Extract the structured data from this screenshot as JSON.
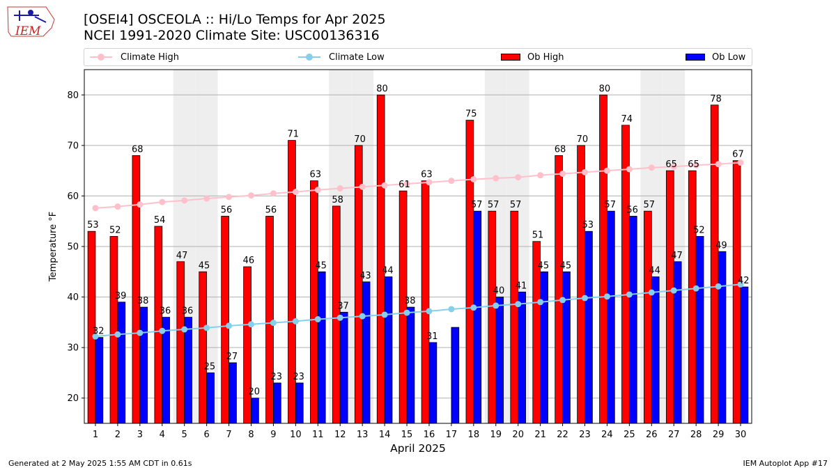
{
  "header": {
    "logo_text": "IEM",
    "title_line1": "[OSEI4] OSCEOLA :: Hi/Lo Temps for Apr 2025",
    "title_line2": "NCEI 1991-2020 Climate Site: USC00136316"
  },
  "footer": {
    "generated": "Generated at 2 May 2025 1:55 AM CDT in 0.61s",
    "app": "IEM Autoplot App #17"
  },
  "colors": {
    "ob_high": "#ff0000",
    "ob_low": "#0000ff",
    "climate_high": "#ffc0cb",
    "climate_low": "#87ceeb",
    "weekend_shade": "#eeeeee",
    "grid": "#b0b0b0"
  },
  "chart_data": {
    "type": "bar",
    "title": "[OSEI4] OSCEOLA :: Hi/Lo Temps for Apr 2025",
    "subtitle": "NCEI 1991-2020 Climate Site: USC00136316",
    "xlabel": "April 2025",
    "ylabel": "Temperature °F",
    "ylim": [
      15,
      85
    ],
    "yticks": [
      20,
      30,
      40,
      50,
      60,
      70,
      80
    ],
    "grid": true,
    "legend_position": "top",
    "categories": [
      1,
      2,
      3,
      4,
      5,
      6,
      7,
      8,
      9,
      10,
      11,
      12,
      13,
      14,
      15,
      16,
      17,
      18,
      19,
      20,
      21,
      22,
      23,
      24,
      25,
      26,
      27,
      28,
      29,
      30
    ],
    "shaded_days": [
      5,
      6,
      12,
      13,
      19,
      20,
      26,
      27
    ],
    "series": [
      {
        "name": "Ob High",
        "kind": "bar",
        "values": [
          53,
          52,
          68,
          54,
          47,
          45,
          56,
          46,
          56,
          71,
          63,
          58,
          70,
          80,
          61,
          63,
          null,
          75,
          57,
          57,
          51,
          68,
          70,
          80,
          74,
          57,
          65,
          65,
          78,
          67
        ]
      },
      {
        "name": "Ob Low",
        "kind": "bar",
        "values": [
          32,
          39,
          38,
          36,
          36,
          25,
          27,
          20,
          23,
          23,
          45,
          37,
          43,
          44,
          38,
          31,
          34,
          57,
          40,
          41,
          45,
          45,
          53,
          57,
          56,
          44,
          47,
          52,
          49,
          42
        ]
      },
      {
        "name": "Climate High",
        "kind": "line",
        "values": [
          57.6,
          57.9,
          58.3,
          58.8,
          59.1,
          59.5,
          59.8,
          60.1,
          60.5,
          60.8,
          61.2,
          61.5,
          61.8,
          62.1,
          62.4,
          62.7,
          63.0,
          63.3,
          63.5,
          63.7,
          64.1,
          64.4,
          64.7,
          65.0,
          65.3,
          65.6,
          65.8,
          66.1,
          66.3,
          66.6
        ]
      },
      {
        "name": "Climate Low",
        "kind": "line",
        "values": [
          32.2,
          32.6,
          32.9,
          33.3,
          33.6,
          33.9,
          34.3,
          34.6,
          34.9,
          35.2,
          35.6,
          35.9,
          36.2,
          36.5,
          36.9,
          37.2,
          37.6,
          37.9,
          38.3,
          38.6,
          39.0,
          39.4,
          39.8,
          40.1,
          40.5,
          40.9,
          41.3,
          41.7,
          42.1,
          42.5
        ]
      }
    ],
    "data_labels": {
      "ob_high": [
        "53",
        "52",
        "68",
        "54",
        "47",
        "45",
        "56",
        "46",
        "56",
        "71",
        "63",
        "58",
        "70",
        "80",
        "61",
        "63",
        "",
        "75",
        "57",
        "57",
        "51",
        "68",
        "70",
        "80",
        "74",
        "57",
        "65",
        "65",
        "78",
        "67"
      ],
      "ob_low": [
        "32",
        "39",
        "38",
        "36",
        "36",
        "25",
        "27",
        "20",
        "23",
        "23",
        "45",
        "37",
        "43",
        "44",
        "38",
        "31",
        "",
        "57",
        "40",
        "41",
        "45",
        "45",
        "53",
        "57",
        "56",
        "44",
        "47",
        "52",
        "49",
        "42"
      ]
    }
  }
}
